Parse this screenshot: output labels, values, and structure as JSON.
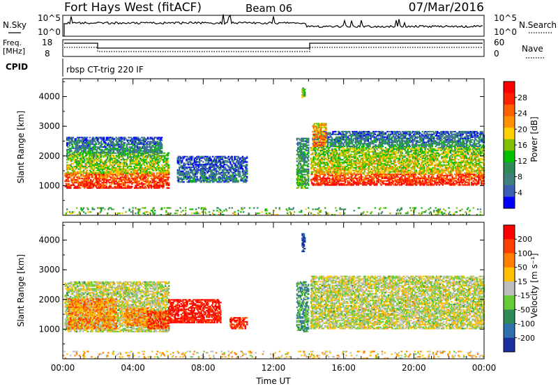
{
  "header": {
    "station": "Fort Hays West (fitACF)",
    "beam": "Beam 06",
    "date": "07/Mar/2016"
  },
  "strips": {
    "nsky_label": "N.Sky",
    "nsky_tick_top": "10^5",
    "nsky_tick_bottom": "10^0",
    "nsearch_label": "N.Search",
    "nsearch_tick_top": "10^5",
    "nsearch_tick_bottom": "10^0",
    "freq_label_1": "Freq.",
    "freq_label_2": "[MHz]",
    "freq_tick_top": "18",
    "freq_tick_bottom": "8",
    "nave_label": "Nave",
    "nave_tick_top": "60",
    "nave_tick_bottom": "0",
    "cpid_label": "CPID",
    "cpid_text": "rbsp CT-trig 220 IF"
  },
  "chart_data": [
    {
      "type": "heatmap",
      "name": "power",
      "ylabel": "Slant Range [km]",
      "ylim": [
        0,
        4600
      ],
      "yticks": [
        "1000",
        "2000",
        "3000",
        "4000"
      ],
      "xlim_hours": [
        0,
        24
      ],
      "colorbar_label": "Power [dB]",
      "colorbar_ticks": [
        "4",
        "8",
        "12",
        "16",
        "20",
        "24",
        "28"
      ],
      "colors": [
        "#0000ff",
        "#3a5fb5",
        "#3f7f7f",
        "#2e8b57",
        "#00c000",
        "#80c000",
        "#ffd000",
        "#ff9000",
        "#ff6000",
        "#ff2000",
        "#ff0000"
      ],
      "blobs": [
        {
          "t0": 0.1,
          "t1": 6.0,
          "r0": 900,
          "r1": 1400,
          "v": 0.9
        },
        {
          "t0": 0.2,
          "t1": 6.0,
          "r0": 1400,
          "r1": 2100,
          "v": 0.55
        },
        {
          "t0": 0.2,
          "t1": 5.6,
          "r0": 2100,
          "r1": 2600,
          "v": 0.3
        },
        {
          "t0": 6.5,
          "t1": 10.5,
          "r0": 1100,
          "r1": 2000,
          "v": 0.25
        },
        {
          "t0": 13.3,
          "t1": 14.0,
          "r0": 900,
          "r1": 2600,
          "v": 0.4
        },
        {
          "t0": 13.6,
          "t1": 13.8,
          "r0": 3900,
          "r1": 4300,
          "v": 0.5
        },
        {
          "t0": 14.1,
          "t1": 24.0,
          "r0": 1000,
          "r1": 1400,
          "v": 0.92
        },
        {
          "t0": 14.1,
          "t1": 24.0,
          "r0": 1400,
          "r1": 2300,
          "v": 0.6
        },
        {
          "t0": 14.2,
          "t1": 24.0,
          "r0": 2300,
          "r1": 2800,
          "v": 0.3
        },
        {
          "t0": 14.2,
          "t1": 15.0,
          "r0": 2300,
          "r1": 3100,
          "v": 0.75
        },
        {
          "t0": 0.0,
          "t1": 24.0,
          "r0": 0,
          "r1": 250,
          "v": 0.5
        }
      ]
    },
    {
      "type": "heatmap",
      "name": "velocity",
      "ylabel": "Slant Range [km]",
      "ylim": [
        0,
        4600
      ],
      "yticks": [
        "1000",
        "2000",
        "3000",
        "4000"
      ],
      "xticks": [
        "00:00",
        "04:00",
        "08:00",
        "12:00",
        "16:00",
        "20:00",
        "00:00"
      ],
      "xlabel": "Time UT",
      "xlim_hours": [
        0,
        24
      ],
      "colorbar_label": "Velocity [m s⁻¹]",
      "colorbar_ticks": [
        "200",
        "100",
        "50",
        "15",
        "-15",
        "-50",
        "-100",
        "-200"
      ],
      "colors": [
        "#1b2fa0",
        "#2e6fb0",
        "#2e8b57",
        "#66cc33",
        "#bebebe",
        "#ffc000",
        "#ff8000",
        "#ff4000",
        "#ff0000"
      ],
      "blobs": [
        {
          "t0": 0.1,
          "t1": 6.0,
          "r0": 900,
          "r1": 2600,
          "v": 0.5
        },
        {
          "t0": 0.3,
          "t1": 3.0,
          "r0": 1000,
          "r1": 2000,
          "v": 0.7
        },
        {
          "t0": 3.5,
          "t1": 4.8,
          "r0": 1100,
          "r1": 1700,
          "v": 0.7
        },
        {
          "t0": 4.8,
          "t1": 6.0,
          "r0": 1000,
          "r1": 1600,
          "v": 0.85
        },
        {
          "t0": 6.0,
          "t1": 9.0,
          "r0": 1200,
          "r1": 2000,
          "v": 0.95
        },
        {
          "t0": 9.5,
          "t1": 10.5,
          "r0": 1000,
          "r1": 1400,
          "v": 0.9
        },
        {
          "t0": 13.3,
          "t1": 14.0,
          "r0": 900,
          "r1": 2600,
          "v": 0.3
        },
        {
          "t0": 13.6,
          "t1": 13.8,
          "r0": 3600,
          "r1": 4200,
          "v": 0.05
        },
        {
          "t0": 14.1,
          "t1": 24.0,
          "r0": 1000,
          "r1": 2800,
          "v": 0.5
        },
        {
          "t0": 0.0,
          "t1": 24.0,
          "r0": 0,
          "r1": 250,
          "v": 0.6
        }
      ]
    }
  ]
}
